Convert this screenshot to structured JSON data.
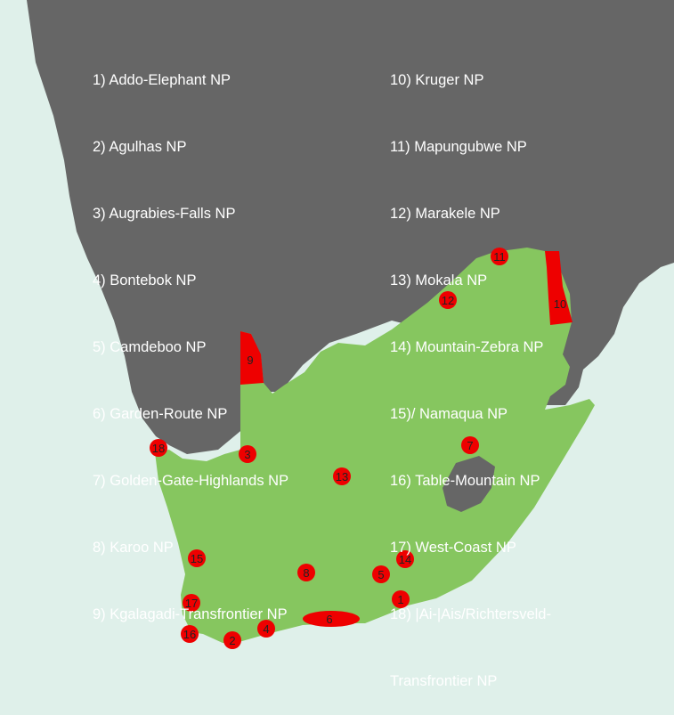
{
  "colors": {
    "sea": "#dff0ea",
    "land_other": "#666666",
    "south_africa": "#86c65f",
    "park": "#ee0000",
    "legend_text": "#ffffff",
    "marker_text": "#222222"
  },
  "legend": {
    "left": [
      "1) Addo-Elephant NP",
      "2) Agulhas NP",
      "3) Augrabies-Falls NP",
      "4) Bontebok NP",
      "5) Camdeboo NP",
      "6) Garden-Route NP",
      "7) Golden-Gate-Highlands NP",
      "8) Karoo NP",
      "9) Kgalagadi-Transfrontier NP"
    ],
    "right": [
      "10) Kruger NP",
      "11) Mapungubwe NP",
      "12) Marakele NP",
      "13) Mokala NP",
      "14) Mountain-Zebra NP",
      "15)/ Namaqua NP",
      "16) Table-Mountain NP",
      "17) West-Coast NP",
      "18) |Ai-|Ais/Richtersveld-",
      "Transfrontier NP"
    ]
  },
  "markers": [
    "1",
    "2",
    "3",
    "4",
    "5",
    "6",
    "7",
    "8",
    "9",
    "10",
    "11",
    "12",
    "13",
    "14",
    "15",
    "16",
    "17",
    "18"
  ]
}
